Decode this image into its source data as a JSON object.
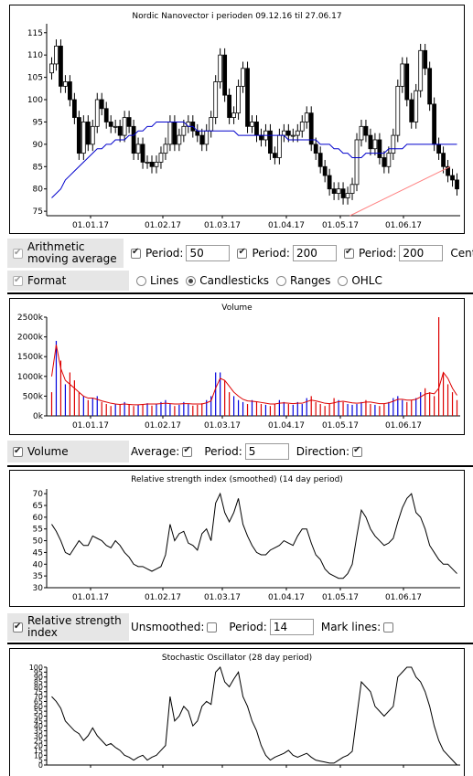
{
  "price_chart": {
    "title": "Nordic Nanovector i perioden 09.12.16 til 27.06.17",
    "x_labels": [
      "01.01.17",
      "01.02.17",
      "01.03.17",
      "01.04.17",
      "01.05.17",
      "01.06.17"
    ]
  },
  "ma_controls": {
    "label": "Arithmetic moving average",
    "period_label": "Period:",
    "period1": "50",
    "period2": "200",
    "period3": "200",
    "center_label": "Cente"
  },
  "format_controls": {
    "label": "Format",
    "options": [
      "Lines",
      "Candlesticks",
      "Ranges",
      "OHLC"
    ],
    "selected": "Candlesticks"
  },
  "volume_chart": {
    "title": "Volume",
    "x_labels": [
      "01.01.17",
      "01.02.17",
      "01.03.17",
      "01.04.17",
      "01.05.17",
      "01.06.17"
    ]
  },
  "volume_controls": {
    "label": "Volume",
    "average_label": "Average:",
    "period_label": "Period:",
    "period": "5",
    "direction_label": "Direction:"
  },
  "rsi_chart": {
    "title": "Relative strength index (smoothed) (14 day period)",
    "x_labels": [
      "01.01.17",
      "01.02.17",
      "01.03.17",
      "01.04.17",
      "01.05.17",
      "01.06.17"
    ]
  },
  "rsi_controls": {
    "label": "Relative strength index",
    "unsmoothed_label": "Unsmoothed:",
    "period_label": "Period:",
    "period": "14",
    "marklines_label": "Mark lines:"
  },
  "stoch_chart": {
    "title": "Stochastic Oscillator (28 day period)"
  },
  "colors": {
    "ma50": "#0000cc",
    "ma200": "#ff8080",
    "vol_up": "#0000dd",
    "vol_down": "#dd0000",
    "vol_avg": "#dd0000"
  },
  "chart_data": [
    {
      "type": "candlestick",
      "title": "Nordic Nanovector i perioden 09.12.16 til 27.06.17",
      "x_range": [
        "09.12.16",
        "27.06.17"
      ],
      "ylim": [
        74,
        117
      ],
      "yticks": [
        75,
        80,
        85,
        90,
        95,
        100,
        105,
        110,
        115
      ],
      "grid": false,
      "series": [
        {
          "name": "close",
          "values": [
            108,
            112,
            103,
            104,
            100,
            96,
            88,
            95,
            90,
            94,
            100,
            98,
            95,
            94,
            94,
            92,
            96,
            94,
            88,
            90,
            86,
            86,
            85,
            86,
            88,
            90,
            95,
            90,
            92,
            94,
            95,
            93,
            92,
            90,
            93,
            96,
            104,
            110,
            101,
            96,
            97,
            103,
            107,
            94,
            95,
            92,
            91,
            93,
            88,
            87,
            92,
            93,
            92,
            92,
            93,
            95,
            97,
            90,
            88,
            85,
            83,
            80,
            79,
            80,
            78,
            79,
            81,
            91,
            94,
            92,
            89,
            91,
            87,
            85,
            88,
            92,
            103,
            108,
            100,
            95,
            102,
            111,
            107,
            99,
            90,
            88,
            85,
            83,
            82,
            80
          ]
        },
        {
          "name": "MA",
          "values": [
            78,
            79,
            80,
            82,
            83,
            84,
            85,
            86,
            87,
            88,
            89,
            89,
            90,
            90,
            91,
            91,
            91,
            92,
            92,
            93,
            93,
            94,
            94,
            95,
            95,
            95,
            95,
            95,
            95,
            95,
            94,
            94,
            93,
            93,
            93,
            93,
            93,
            93,
            93,
            93,
            93,
            92,
            92,
            92,
            92,
            92,
            92,
            92,
            92,
            92,
            92,
            92,
            91,
            91,
            91,
            91,
            91,
            91,
            91,
            90,
            90,
            90,
            89,
            89,
            88,
            88,
            87,
            87,
            87,
            88,
            88,
            88,
            88,
            88,
            89,
            89,
            89,
            89,
            90,
            90,
            90,
            90,
            90,
            90,
            90,
            90,
            90,
            90,
            90,
            90
          ]
        },
        {
          "name": "MA200",
          "values": [
            74,
            75,
            76,
            77,
            78,
            79,
            80,
            81,
            82,
            83,
            84,
            85
          ]
        }
      ]
    },
    {
      "type": "bar",
      "title": "Volume",
      "ylim": [
        0,
        2500
      ],
      "yticks": [
        "0k",
        "500k",
        "1000k",
        "1500k",
        "2000k",
        "2500k"
      ],
      "values": [
        600,
        1900,
        1400,
        800,
        1100,
        900,
        600,
        500,
        400,
        450,
        500,
        350,
        300,
        250,
        300,
        280,
        350,
        300,
        250,
        280,
        300,
        320,
        260,
        300,
        350,
        400,
        300,
        250,
        280,
        350,
        300,
        260,
        280,
        320,
        400,
        500,
        1100,
        1100,
        900,
        600,
        500,
        400,
        350,
        300,
        400,
        350,
        300,
        280,
        250,
        300,
        400,
        350,
        300,
        280,
        350,
        300,
        450,
        500,
        350,
        300,
        250,
        300,
        450,
        400,
        350,
        300,
        280,
        300,
        350,
        400,
        300,
        280,
        250,
        300,
        350,
        450,
        500,
        400,
        350,
        400,
        450,
        600,
        700,
        600,
        500,
        2500,
        1100,
        800,
        600,
        400
      ],
      "avg": [
        1000,
        1800,
        1200,
        900,
        800,
        700,
        600,
        500,
        450,
        450,
        420,
        380,
        350,
        320,
        300,
        290,
        300,
        290,
        280,
        280,
        290,
        300,
        300,
        300,
        310,
        320,
        310,
        300,
        300,
        310,
        310,
        300,
        300,
        300,
        330,
        380,
        700,
        950,
        900,
        750,
        600,
        500,
        420,
        380,
        370,
        360,
        340,
        320,
        300,
        300,
        320,
        330,
        320,
        310,
        320,
        320,
        360,
        400,
        380,
        350,
        320,
        310,
        330,
        360,
        370,
        350,
        330,
        320,
        330,
        350,
        350,
        330,
        310,
        310,
        330,
        370,
        420,
        420,
        400,
        400,
        420,
        480,
        550,
        580,
        560,
        700,
        1100,
        950,
        700,
        520
      ]
    },
    {
      "type": "line",
      "title": "Relative strength index (smoothed) (14 day period)",
      "ylim": [
        30,
        72
      ],
      "yticks": [
        30,
        35,
        40,
        45,
        50,
        55,
        60,
        65,
        70
      ],
      "values": [
        57,
        54,
        50,
        45,
        44,
        47,
        50,
        48,
        48,
        52,
        51,
        50,
        48,
        47,
        50,
        48,
        45,
        43,
        40,
        39,
        39,
        38,
        37,
        38,
        39,
        44,
        57,
        50,
        53,
        54,
        49,
        48,
        46,
        53,
        55,
        50,
        66,
        70,
        62,
        58,
        62,
        68,
        57,
        52,
        48,
        45,
        44,
        44,
        46,
        47,
        48,
        50,
        49,
        48,
        52,
        55,
        55,
        49,
        44,
        42,
        38,
        36,
        35,
        34,
        34,
        36,
        40,
        52,
        63,
        60,
        55,
        52,
        50,
        48,
        49,
        51,
        58,
        64,
        68,
        70,
        62,
        60,
        55,
        48,
        45,
        42,
        40,
        40,
        38,
        36
      ]
    },
    {
      "type": "line",
      "title": "Stochastic Oscillator (28 day period)",
      "ylim": [
        0,
        100
      ],
      "yticks": [
        0,
        5,
        10,
        15,
        20,
        25,
        30,
        35,
        40,
        45,
        50,
        55,
        60,
        65,
        70,
        75,
        80,
        85,
        90,
        95,
        100
      ],
      "values": [
        70,
        65,
        58,
        45,
        40,
        35,
        32,
        25,
        30,
        38,
        30,
        25,
        20,
        22,
        18,
        15,
        10,
        8,
        5,
        8,
        10,
        5,
        8,
        10,
        15,
        20,
        70,
        45,
        50,
        60,
        55,
        40,
        45,
        60,
        65,
        62,
        95,
        100,
        85,
        80,
        88,
        95,
        70,
        60,
        45,
        35,
        20,
        10,
        5,
        8,
        10,
        12,
        15,
        10,
        8,
        10,
        12,
        8,
        5,
        4,
        3,
        2,
        2,
        5,
        8,
        10,
        14,
        50,
        85,
        80,
        75,
        60,
        55,
        50,
        55,
        60,
        90,
        95,
        100,
        100,
        90,
        85,
        75,
        60,
        40,
        25,
        15,
        10,
        5,
        0
      ]
    }
  ]
}
